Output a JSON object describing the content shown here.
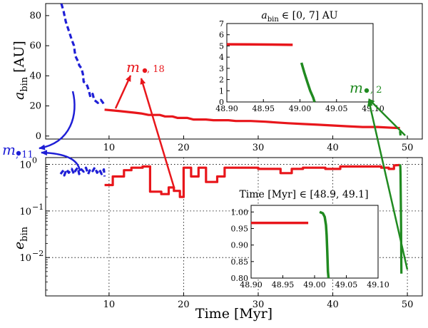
{
  "chart_data": {
    "type": "line",
    "shared_x_axis": {
      "label": "Time [Myr]",
      "range": [
        1.5,
        52
      ],
      "ticks": [
        "10",
        "20",
        "30",
        "40",
        "50"
      ]
    },
    "colors": {
      "m11": "#1f1fd6",
      "m18": "#e8161b",
      "m2": "#208a20"
    },
    "panels": [
      {
        "id": "top",
        "ylabel_main": "a",
        "ylabel_sub": "bin",
        "ylabel_unit": "[AU]",
        "ylim": [
          -2,
          88
        ],
        "yticks": [
          "0",
          "20",
          "40",
          "60",
          "80"
        ],
        "series": [
          {
            "name": "m11 (blue, dashed)",
            "color_key": "m11",
            "style": "dashed",
            "points": [
              [
                3.6,
                88
              ],
              [
                3.9,
                83
              ],
              [
                4.2,
                76
              ],
              [
                4.6,
                70
              ],
              [
                5.0,
                64
              ],
              [
                5.3,
                60
              ],
              [
                5.4,
                56
              ],
              [
                5.5,
                53
              ],
              [
                5.7,
                51
              ],
              [
                5.9,
                49
              ],
              [
                6.0,
                47
              ],
              [
                6.3,
                45
              ],
              [
                6.5,
                41
              ],
              [
                6.6,
                36
              ],
              [
                6.9,
                35
              ],
              [
                7.1,
                33
              ],
              [
                7.3,
                30
              ],
              [
                7.5,
                26
              ],
              [
                7.8,
                28
              ],
              [
                8.0,
                24
              ],
              [
                8.5,
                22
              ],
              [
                8.9,
                24
              ],
              [
                9.2,
                22
              ],
              [
                9.4,
                20
              ]
            ]
          },
          {
            "name": "m18 (red)",
            "color_key": "m18",
            "style": "solid",
            "points": [
              [
                9.4,
                17.5
              ],
              [
                10.5,
                17
              ],
              [
                11.5,
                16.5
              ],
              [
                12.5,
                16
              ],
              [
                13.5,
                15.5
              ],
              [
                14.3,
                15
              ],
              [
                15.3,
                14
              ],
              [
                16.8,
                14
              ],
              [
                17.5,
                13
              ],
              [
                18.5,
                13
              ],
              [
                19.2,
                12
              ],
              [
                20.5,
                12
              ],
              [
                21.3,
                11
              ],
              [
                23.0,
                11
              ],
              [
                24.0,
                10.5
              ],
              [
                26.0,
                10.5
              ],
              [
                27.0,
                10
              ],
              [
                29.0,
                10
              ],
              [
                31.0,
                9.5
              ],
              [
                32.5,
                9
              ],
              [
                34.0,
                8.5
              ],
              [
                36.0,
                8
              ],
              [
                38.0,
                7.5
              ],
              [
                40.0,
                7
              ],
              [
                42.0,
                6.5
              ],
              [
                44.0,
                6
              ],
              [
                46.0,
                6
              ],
              [
                48.0,
                5.5
              ],
              [
                49.0,
                5.3
              ]
            ]
          },
          {
            "name": "m2 (green)",
            "color_key": "m2",
            "style": "solid",
            "points": [
              [
                49.02,
                3.2
              ],
              [
                49.05,
                1.5
              ],
              [
                49.08,
                0.4
              ]
            ]
          }
        ],
        "inset": {
          "title": "a_bin ∈ [0, 7] AU",
          "title_main": "a",
          "title_sub": "bin",
          "title_rest": "∈ [0, 7] AU",
          "xlim": [
            48.9,
            49.1
          ],
          "ylim": [
            0,
            7
          ],
          "xticks": [
            "48.90",
            "48.95",
            "49.00",
            "49.05",
            "49.10"
          ],
          "yticks": [
            "0",
            "1",
            "2",
            "3",
            "4",
            "5",
            "6",
            "7"
          ],
          "series": [
            {
              "name": "m18",
              "color_key": "m18",
              "points": [
                [
                  48.9,
                  5.15
                ],
                [
                  48.93,
                  5.14
                ],
                [
                  48.96,
                  5.12
                ],
                [
                  48.99,
                  5.1
                ]
              ]
            },
            {
              "name": "m2",
              "color_key": "m2",
              "points": [
                [
                  49.002,
                  3.5
                ],
                [
                  49.006,
                  2.6
                ],
                [
                  49.01,
                  1.8
                ],
                [
                  49.014,
                  1.0
                ],
                [
                  49.018,
                  0.4
                ],
                [
                  49.02,
                  0.0
                ]
              ]
            }
          ]
        }
      },
      {
        "id": "bottom",
        "ylabel_main": "e",
        "ylabel_sub": "bin",
        "yscale": "log",
        "ylim": [
          0.0015,
          1.4
        ],
        "yticks": [
          {
            "value": 1,
            "label": "10",
            "exp": "0"
          },
          {
            "value": 0.1,
            "label": "10",
            "exp": "−1"
          },
          {
            "value": 0.01,
            "label": "10",
            "exp": "−2"
          }
        ],
        "grid": true,
        "series": [
          {
            "name": "m11 (blue, dashed)",
            "color_key": "m11",
            "style": "dashed",
            "points": [
              [
                3.5,
                0.62
              ],
              [
                3.8,
                0.72
              ],
              [
                4.0,
                0.58
              ],
              [
                4.3,
                0.78
              ],
              [
                4.6,
                0.66
              ],
              [
                5.0,
                0.8
              ],
              [
                5.3,
                0.62
              ],
              [
                5.5,
                0.74
              ],
              [
                5.8,
                0.85
              ],
              [
                6.0,
                0.62
              ],
              [
                6.3,
                0.78
              ],
              [
                6.6,
                0.7
              ],
              [
                6.9,
                0.85
              ],
              [
                7.2,
                0.62
              ],
              [
                7.5,
                0.8
              ],
              [
                7.8,
                0.72
              ],
              [
                8.1,
                0.86
              ],
              [
                8.4,
                0.66
              ],
              [
                8.7,
                0.78
              ],
              [
                9.0,
                0.62
              ],
              [
                9.3,
                0.78
              ],
              [
                9.4,
                0.55
              ]
            ]
          },
          {
            "name": "m18 (red)",
            "color_key": "m18",
            "style": "solid",
            "points": [
              [
                9.4,
                0.36
              ],
              [
                10.5,
                0.36
              ],
              [
                10.5,
                0.55
              ],
              [
                12.0,
                0.55
              ],
              [
                12.0,
                0.75
              ],
              [
                13.0,
                0.75
              ],
              [
                13.0,
                0.85
              ],
              [
                14.5,
                0.85
              ],
              [
                14.5,
                0.9
              ],
              [
                15.5,
                0.9
              ],
              [
                15.5,
                0.26
              ],
              [
                17.0,
                0.26
              ],
              [
                17.0,
                0.23
              ],
              [
                18.0,
                0.23
              ],
              [
                18.0,
                0.32
              ],
              [
                18.7,
                0.32
              ],
              [
                18.7,
                0.27
              ],
              [
                19.5,
                0.27
              ],
              [
                19.5,
                0.2
              ],
              [
                20.0,
                0.2
              ],
              [
                20.0,
                0.85
              ],
              [
                21.0,
                0.85
              ],
              [
                21.0,
                0.55
              ],
              [
                22.0,
                0.55
              ],
              [
                22.0,
                0.85
              ],
              [
                23.0,
                0.85
              ],
              [
                23.0,
                0.42
              ],
              [
                24.5,
                0.42
              ],
              [
                24.5,
                0.55
              ],
              [
                25.5,
                0.55
              ],
              [
                25.5,
                0.85
              ],
              [
                30.0,
                0.85
              ],
              [
                30.0,
                0.8
              ],
              [
                33.0,
                0.8
              ],
              [
                33.0,
                0.65
              ],
              [
                34.5,
                0.65
              ],
              [
                34.5,
                0.8
              ],
              [
                36.0,
                0.8
              ],
              [
                36.0,
                0.85
              ],
              [
                39.0,
                0.85
              ],
              [
                39.0,
                0.8
              ],
              [
                41.0,
                0.8
              ],
              [
                41.0,
                0.9
              ],
              [
                46.5,
                0.9
              ],
              [
                46.5,
                0.85
              ],
              [
                47.5,
                0.85
              ],
              [
                47.5,
                0.8
              ],
              [
                48.2,
                0.8
              ],
              [
                48.2,
                0.95
              ],
              [
                49.0,
                0.97
              ]
            ]
          },
          {
            "name": "m2 (green)",
            "color_key": "m2",
            "style": "solid",
            "points": [
              [
                49.0,
                1.0
              ],
              [
                49.05,
                0.9
              ],
              [
                49.08,
                0.6
              ],
              [
                49.1,
                0.3
              ],
              [
                49.13,
                0.12
              ],
              [
                49.16,
                0.04
              ],
              [
                49.18,
                0.012
              ],
              [
                49.2,
                0.0045
              ]
            ]
          }
        ],
        "inset": {
          "title": "Time [Myr] ∈ [48.9, 49.1]",
          "xlim": [
            48.9,
            49.1
          ],
          "ylim": [
            0.8,
            1.02
          ],
          "xticks": [
            "48.90",
            "48.95",
            "49.00",
            "49.05",
            "49.10"
          ],
          "yticks": [
            "0.80",
            "0.85",
            "0.90",
            "0.95",
            "1.00"
          ],
          "series": [
            {
              "name": "m18",
              "color_key": "m18",
              "points": [
                [
                  48.9,
                  0.967
                ],
                [
                  48.93,
                  0.967
                ],
                [
                  48.96,
                  0.967
                ],
                [
                  48.99,
                  0.967
                ]
              ]
            },
            {
              "name": "m2",
              "color_key": "m2",
              "points": [
                [
                  49.008,
                  1.0
                ],
                [
                  49.013,
                  0.996
                ],
                [
                  49.016,
                  0.985
                ],
                [
                  49.018,
                  0.96
                ],
                [
                  49.019,
                  0.93
                ],
                [
                  49.02,
                  0.88
                ],
                [
                  49.021,
                  0.82
                ],
                [
                  49.022,
                  0.8
                ]
              ]
            }
          ]
        }
      }
    ],
    "annotations": [
      {
        "id": "m11",
        "text_main": "m",
        "text_sub": ", 11",
        "color_key": "m11"
      },
      {
        "id": "m18",
        "text_main": "m",
        "text_sub": ", 18",
        "color_key": "m18"
      },
      {
        "id": "m2",
        "text_main": "m",
        "text_sub": ", 2",
        "color_key": "m2"
      }
    ]
  }
}
